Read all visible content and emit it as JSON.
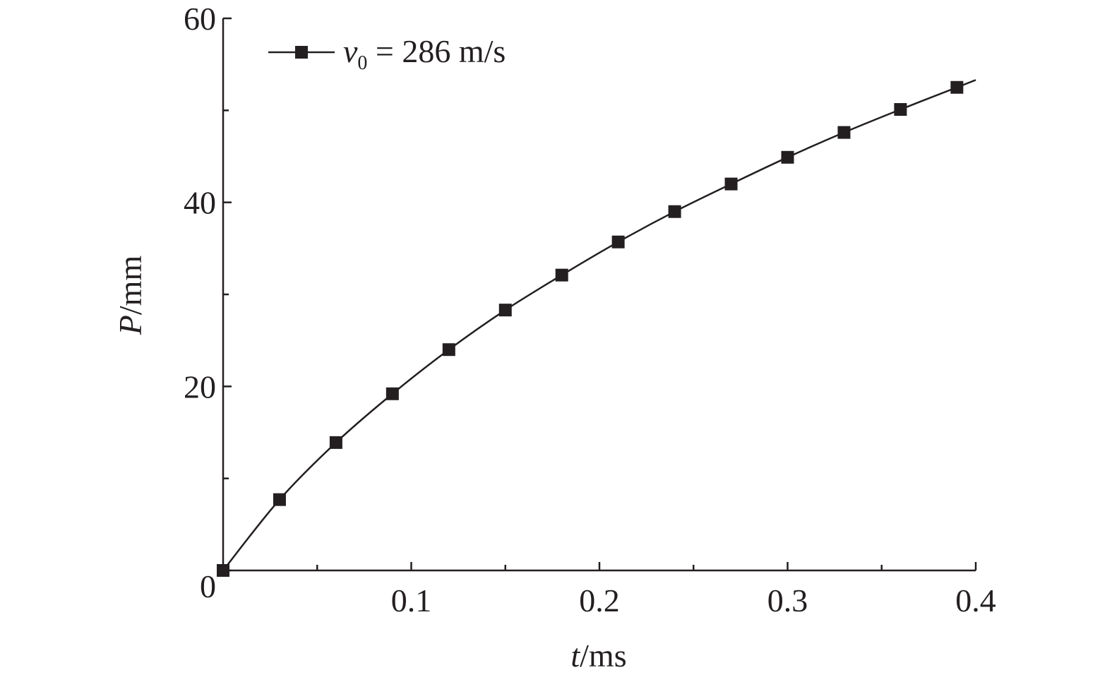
{
  "chart_data": {
    "type": "line",
    "xlabel": {
      "var": "t",
      "unit": "/ms"
    },
    "ylabel": {
      "var": "P",
      "unit": "/mm"
    },
    "xlim": [
      0,
      0.4
    ],
    "ylim": [
      0,
      60
    ],
    "x_ticks": [
      0.1,
      0.2,
      0.3,
      0.4
    ],
    "x_tick_labels": [
      "0.1",
      "0.2",
      "0.3",
      "0.4"
    ],
    "x_minor_ticks": [
      0.05,
      0.15,
      0.25,
      0.35
    ],
    "y_ticks": [
      0,
      20,
      40,
      60
    ],
    "y_tick_labels": [
      "0",
      "20",
      "40",
      "60"
    ],
    "y_minor_ticks": [
      10,
      30,
      50
    ],
    "grid": false,
    "legend_position": "top-left",
    "legend": {
      "symbol": "v",
      "subscript": "0",
      "value_text": " = 286 m/s"
    },
    "series": [
      {
        "marker": "square",
        "color": "#231f20",
        "x": [
          0,
          0.03,
          0.06,
          0.09,
          0.12,
          0.15,
          0.18,
          0.21,
          0.24,
          0.27,
          0.3,
          0.33,
          0.36,
          0.39
        ],
        "y": [
          0,
          7.7,
          13.9,
          19.2,
          24.0,
          28.3,
          32.1,
          35.7,
          39.0,
          42.0,
          44.9,
          47.6,
          50.1,
          52.5
        ],
        "line_end": {
          "x": 0.4,
          "y": 53.3
        }
      }
    ]
  }
}
